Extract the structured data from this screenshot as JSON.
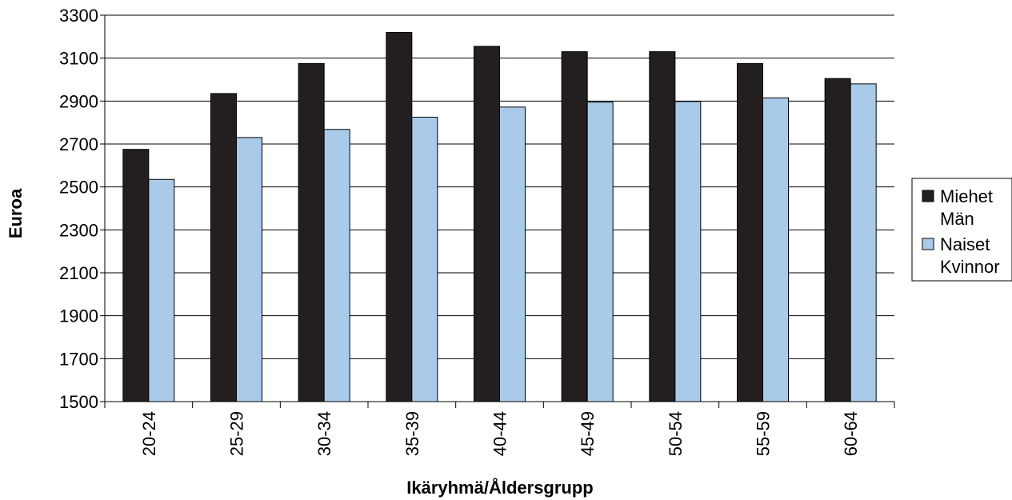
{
  "chart_data": {
    "type": "bar",
    "categories": [
      "20-24",
      "25-29",
      "30-34",
      "35-39",
      "40-44",
      "45-49",
      "50-54",
      "55-59",
      "60-64"
    ],
    "series": [
      {
        "name": "Miehet Män",
        "legend_lines": [
          "Miehet",
          "Män"
        ],
        "color": "#231f20",
        "values": [
          2675,
          2935,
          3075,
          3220,
          3155,
          3130,
          3130,
          3075,
          3005
        ]
      },
      {
        "name": "Naiset Kvinnor",
        "legend_lines": [
          "Naiset",
          "Kvinnor"
        ],
        "color": "#a9cbe9",
        "values": [
          2535,
          2730,
          2768,
          2825,
          2872,
          2895,
          2898,
          2915,
          2980
        ]
      }
    ],
    "title": "",
    "xlabel": "Ikäryhmä/Åldersgrupp",
    "ylabel": "Euroa",
    "ylim": [
      1500,
      3300
    ],
    "yticks": [
      1500,
      1700,
      1900,
      2100,
      2300,
      2500,
      2700,
      2900,
      3100,
      3300
    ],
    "grid": true,
    "legend_position": "right"
  }
}
